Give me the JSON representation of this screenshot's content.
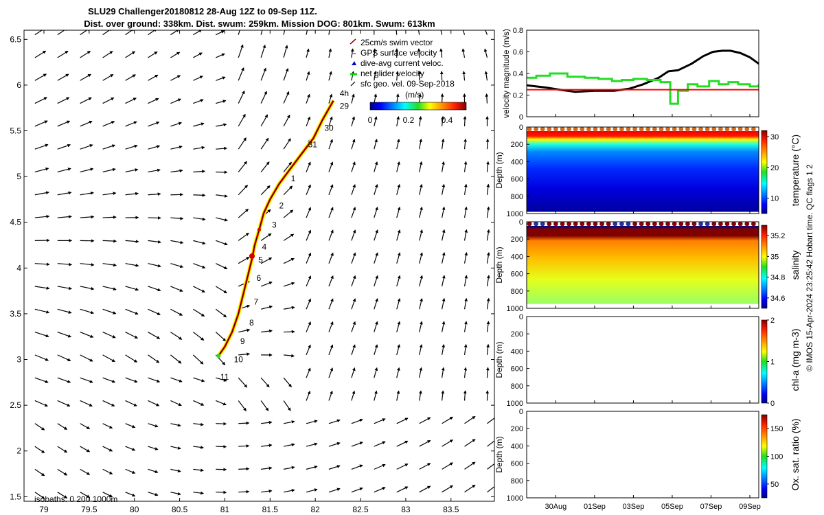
{
  "title": {
    "line1": "SLU29 Challenger20180812 28-Aug 12Z to 09-Sep 11Z.",
    "line2": "Dist. over ground: 338km. Dist. swum: 259km. Mission DOG: 801km. Swum: 613km"
  },
  "map": {
    "x_ticks": [
      "79",
      "79.5",
      "80",
      "80.5",
      "81",
      "81.5",
      "82",
      "82.5",
      "83",
      "83.5"
    ],
    "x_tick_values": [
      79,
      79.5,
      80,
      80.5,
      81,
      81.5,
      82,
      82.5,
      83,
      83.5
    ],
    "y_ticks": [
      "1.5",
      "2",
      "2.5",
      "3",
      "3.5",
      "4",
      "4.5",
      "5",
      "5.5",
      "6",
      "6.5"
    ],
    "y_tick_values": [
      1.5,
      2,
      2.5,
      3,
      3.5,
      4,
      4.5,
      5,
      5.5,
      6,
      6.5
    ],
    "xlim": [
      78.78,
      83.98
    ],
    "ylim": [
      1.45,
      6.6
    ],
    "legend": [
      {
        "label": "25cm/s swim vector",
        "color": "#8b0000"
      },
      {
        "label": "GPS surface velocity",
        "color": "#ff00ff"
      },
      {
        "label": "dive-avg current veloc.",
        "color": "#0000cc"
      },
      {
        "label": "net glider velocity",
        "color": "#00dd00"
      },
      {
        "label": "sfc geo. vel. 09-Sep-2018",
        "color": "#000000"
      }
    ],
    "speed_colorbar": {
      "label": "(m/s)",
      "ticks": [
        "0",
        "0.2",
        "0.4"
      ],
      "tick_values": [
        0,
        0.2,
        0.4
      ],
      "range": [
        0,
        0.5
      ]
    },
    "isobaths_label": "isobaths: 0   200  1000m",
    "track": [
      [
        80.93,
        3.04
      ],
      [
        81.0,
        3.14
      ],
      [
        81.08,
        3.3
      ],
      [
        81.15,
        3.5
      ],
      [
        81.2,
        3.7
      ],
      [
        81.25,
        3.9
      ],
      [
        81.3,
        4.1
      ],
      [
        81.33,
        4.25
      ],
      [
        81.38,
        4.42
      ],
      [
        81.43,
        4.6
      ],
      [
        81.5,
        4.75
      ],
      [
        81.6,
        4.92
      ],
      [
        81.72,
        5.08
      ],
      [
        81.85,
        5.25
      ],
      [
        81.98,
        5.42
      ],
      [
        82.08,
        5.62
      ],
      [
        82.2,
        5.83
      ]
    ],
    "day_labels": [
      {
        "label": "4h",
        "lon": 82.27,
        "lat": 5.88
      },
      {
        "label": "29",
        "lon": 82.27,
        "lat": 5.74
      },
      {
        "label": "30",
        "lon": 82.1,
        "lat": 5.5
      },
      {
        "label": "31",
        "lon": 81.92,
        "lat": 5.32
      },
      {
        "label": "1",
        "lon": 81.73,
        "lat": 4.95
      },
      {
        "label": "2",
        "lon": 81.6,
        "lat": 4.65
      },
      {
        "label": "3",
        "lon": 81.52,
        "lat": 4.44
      },
      {
        "label": "4",
        "lon": 81.41,
        "lat": 4.2
      },
      {
        "label": "5",
        "lon": 81.37,
        "lat": 4.06
      },
      {
        "label": "6",
        "lon": 81.35,
        "lat": 3.86
      },
      {
        "label": "7",
        "lon": 81.32,
        "lat": 3.6
      },
      {
        "label": "8",
        "lon": 81.27,
        "lat": 3.37
      },
      {
        "label": "9",
        "lon": 81.17,
        "lat": 3.17
      },
      {
        "label": "10",
        "lon": 81.1,
        "lat": 2.97
      },
      {
        "label": "11",
        "lon": 80.95,
        "lat": 2.78
      }
    ]
  },
  "chart_data": [
    {
      "type": "line",
      "title": "",
      "ylabel": "velocity magnitude (m/s)",
      "xlabel": "",
      "ylim": [
        0,
        0.8
      ],
      "y_ticks": [
        "0",
        "0.2",
        "0.4",
        "0.6",
        "0.8"
      ],
      "y_tick_values": [
        0,
        0.2,
        0.4,
        0.6,
        0.8
      ],
      "x_unit": "days since 28-Aug 00Z",
      "xlim": [
        0.5,
        12.46
      ],
      "x_tick_labels": [
        "30Aug",
        "01Sep",
        "03Sep",
        "05Sep",
        "07Sep",
        "09Sep"
      ],
      "x_tick_values": [
        2,
        4,
        6,
        8,
        10,
        12
      ],
      "series": [
        {
          "name": "sfc geo. vel.",
          "color": "#000000",
          "x": [
            0.5,
            1.5,
            2.2,
            3.0,
            4.0,
            5.0,
            5.8,
            6.5,
            7.3,
            7.8,
            8.3,
            9.0,
            9.6,
            10.1,
            10.6,
            11.0,
            11.5,
            12.0,
            12.46
          ],
          "y": [
            0.29,
            0.27,
            0.25,
            0.23,
            0.24,
            0.24,
            0.26,
            0.3,
            0.36,
            0.42,
            0.43,
            0.49,
            0.56,
            0.6,
            0.61,
            0.61,
            0.59,
            0.55,
            0.49
          ]
        },
        {
          "name": "net glider velocity",
          "color": "#22dd22",
          "step": true,
          "x": [
            0.5,
            1.0,
            1.7,
            2.6,
            3.5,
            4.2,
            4.9,
            5.4,
            6.0,
            6.7,
            7.4,
            7.9,
            8.3,
            8.8,
            9.3,
            9.9,
            10.4,
            10.9,
            11.4,
            12.0,
            12.46
          ],
          "y": [
            0.36,
            0.38,
            0.4,
            0.37,
            0.36,
            0.35,
            0.33,
            0.34,
            0.35,
            0.34,
            0.32,
            0.12,
            0.24,
            0.3,
            0.28,
            0.33,
            0.3,
            0.32,
            0.3,
            0.28,
            0.3
          ]
        },
        {
          "name": "25cm/s reference",
          "color": "#ff0000",
          "x": [
            0.5,
            12.46
          ],
          "y": [
            0.25,
            0.25
          ]
        }
      ]
    },
    {
      "type": "heatmap",
      "title": "",
      "ylabel": "Depth (m)",
      "colorbar_label": "temperature (°C)",
      "color_range": [
        5,
        32
      ],
      "colorbar_ticks": [
        "10",
        "20",
        "30"
      ],
      "colorbar_tick_values": [
        10,
        20,
        30
      ],
      "ylim": [
        1000,
        0
      ],
      "y_ticks": [
        "0",
        "200",
        "400",
        "600",
        "800",
        "1000"
      ],
      "y_tick_values": [
        0,
        200,
        400,
        600,
        800,
        1000
      ],
      "x_tick_labels": [
        "30Aug",
        "01Sep",
        "03Sep",
        "05Sep",
        "07Sep",
        "09Sep"
      ],
      "profile": [
        {
          "depth": 0,
          "value": 29
        },
        {
          "depth": 60,
          "value": 28
        },
        {
          "depth": 100,
          "value": 22
        },
        {
          "depth": 160,
          "value": 16
        },
        {
          "depth": 250,
          "value": 12
        },
        {
          "depth": 450,
          "value": 9.5
        },
        {
          "depth": 700,
          "value": 7.5
        },
        {
          "depth": 950,
          "value": 6
        }
      ]
    },
    {
      "type": "heatmap",
      "title": "",
      "ylabel": "Depth (m)",
      "colorbar_label": "salinity",
      "color_range": [
        34.5,
        35.3
      ],
      "colorbar_ticks": [
        "34.6",
        "34.8",
        "35",
        "35.2"
      ],
      "colorbar_tick_values": [
        34.6,
        34.8,
        35.0,
        35.2
      ],
      "ylim": [
        1000,
        0
      ],
      "y_ticks": [
        "0",
        "200",
        "400",
        "600",
        "800",
        "1000"
      ],
      "y_tick_values": [
        0,
        200,
        400,
        600,
        800,
        1000
      ],
      "x_tick_labels": [
        "30Aug",
        "01Sep",
        "03Sep",
        "05Sep",
        "07Sep",
        "09Sep"
      ],
      "profile": [
        {
          "depth": 0,
          "value": 34.5
        },
        {
          "depth": 40,
          "value": 35.3
        },
        {
          "depth": 120,
          "value": 35.3
        },
        {
          "depth": 180,
          "value": 35.1
        },
        {
          "depth": 400,
          "value": 35.05
        },
        {
          "depth": 650,
          "value": 34.98
        },
        {
          "depth": 950,
          "value": 34.92
        }
      ]
    },
    {
      "type": "heatmap",
      "title": "",
      "ylabel": "Depth (m)",
      "colorbar_label": "chl-a (mg m-3)",
      "color_range": [
        0,
        2
      ],
      "colorbar_ticks": [
        "0",
        "1",
        "2"
      ],
      "colorbar_tick_values": [
        0,
        1,
        2
      ],
      "ylim": [
        1000,
        0
      ],
      "y_ticks": [
        "0",
        "200",
        "400",
        "600",
        "800",
        "1000"
      ],
      "y_tick_values": [
        0,
        200,
        400,
        600,
        800,
        1000
      ],
      "x_tick_labels": [
        "30Aug",
        "01Sep",
        "03Sep",
        "05Sep",
        "07Sep",
        "09Sep"
      ],
      "profile": []
    },
    {
      "type": "heatmap",
      "title": "",
      "ylabel": "Depth (m)",
      "colorbar_label": "Ox. sat. ratio (%)",
      "color_range": [
        25,
        175
      ],
      "colorbar_ticks": [
        "50",
        "100",
        "150"
      ],
      "colorbar_tick_values": [
        50,
        100,
        150
      ],
      "ylim": [
        1000,
        0
      ],
      "y_ticks": [
        "0",
        "200",
        "400",
        "600",
        "800",
        "1000"
      ],
      "y_tick_values": [
        0,
        200,
        400,
        600,
        800,
        1000
      ],
      "x_tick_labels": [
        "30Aug",
        "01Sep",
        "03Sep",
        "05Sep",
        "07Sep",
        "09Sep"
      ],
      "profile": []
    }
  ],
  "credit": "© IMOS 15-Apr-2024 23:25:42 Hobart time. QC flags 1  2",
  "colors": {
    "axis": "#000000",
    "background": "#ffffff"
  }
}
